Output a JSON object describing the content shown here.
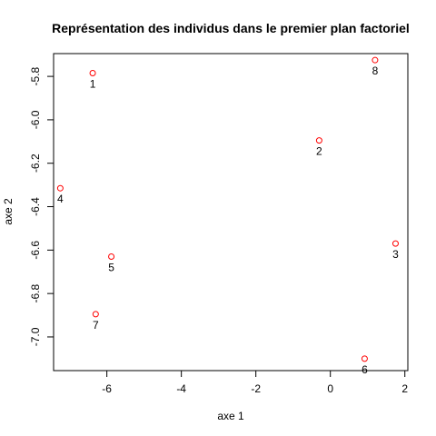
{
  "chart_data": {
    "type": "scatter",
    "title": "Représentation des individus dans le premier plan factoriel",
    "xlabel": "axe 1",
    "ylabel": "axe 2",
    "xlim": [
      -7.43,
      2.08
    ],
    "ylim": [
      -7.155,
      -5.695
    ],
    "xticks": [
      -6,
      -4,
      -2,
      0,
      2
    ],
    "yticks": [
      -5.8,
      -6.0,
      -6.2,
      -6.4,
      -6.6,
      -6.8,
      -7.0
    ],
    "xtick_labels": [
      "-6",
      "-4",
      "-2",
      "0",
      "2"
    ],
    "ytick_labels": [
      "-5.8",
      "-6.0",
      "-6.2",
      "-6.4",
      "-6.6",
      "-6.8",
      "-7.0"
    ],
    "grid": false,
    "point_color": "#ff0000",
    "points": [
      {
        "label": "1",
        "x": -6.38,
        "y": -5.785
      },
      {
        "label": "2",
        "x": -0.3,
        "y": -6.095
      },
      {
        "label": "3",
        "x": 1.75,
        "y": -6.57
      },
      {
        "label": "4",
        "x": -7.25,
        "y": -6.315
      },
      {
        "label": "5",
        "x": -5.88,
        "y": -6.63
      },
      {
        "label": "6",
        "x": 0.92,
        "y": -7.1
      },
      {
        "label": "7",
        "x": -6.3,
        "y": -6.895
      },
      {
        "label": "8",
        "x": 1.2,
        "y": -5.725
      }
    ]
  }
}
